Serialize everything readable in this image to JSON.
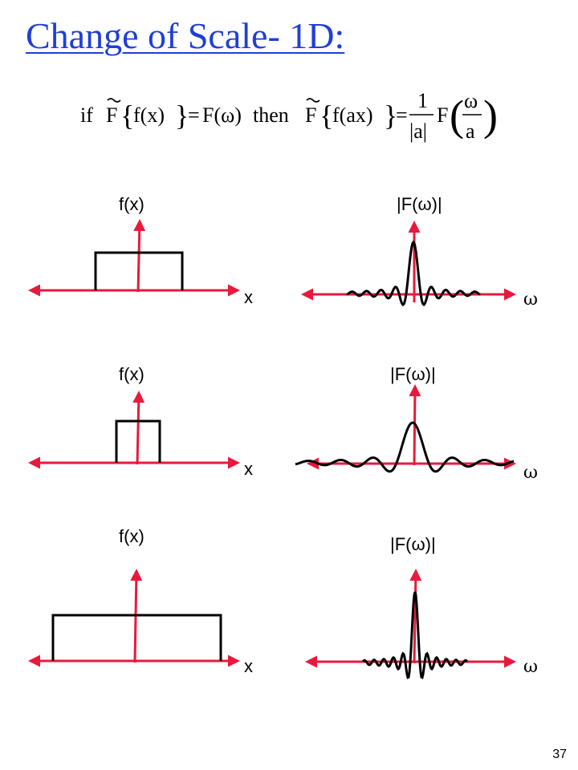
{
  "title": "Change of Scale- 1D:",
  "formula": {
    "if": "if",
    "F": "F",
    "fx": "f(x)",
    "eq1": "=",
    "Fw": "F(ω)",
    "then": "then",
    "fax": "f(ax)",
    "eq2": "=",
    "one": "1",
    "abs_a": "|a|",
    "omega": "ω",
    "a": "a"
  },
  "rows": [
    {
      "f_label": "f(x)",
      "x_axis": "x",
      "F_label": "|F(ω)|",
      "w_axis": "ω"
    },
    {
      "f_label": "f(x)",
      "x_axis": "x",
      "F_label": "|F(ω)|",
      "w_axis": "ω"
    },
    {
      "f_label": "f(x)",
      "x_axis": "x",
      "F_label": "|F(ω)|",
      "w_axis": "ω"
    }
  ],
  "colors": {
    "axis": "#e8193c",
    "curve": "#000000",
    "title": "#1f3fd6"
  },
  "page_number": "37"
}
